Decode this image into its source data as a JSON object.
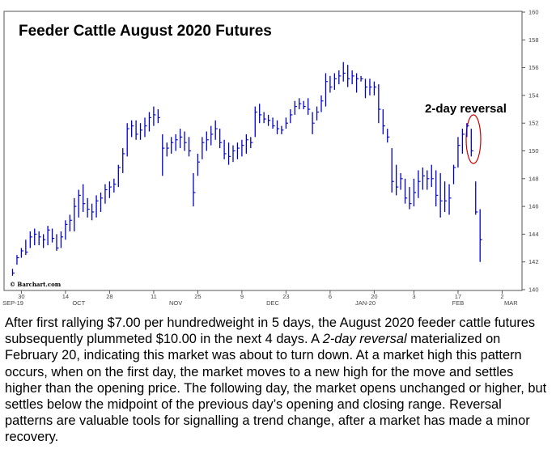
{
  "chart_data": {
    "type": "ohlc",
    "title": "Feeder Cattle August 2020 Futures",
    "annotation": "2-day reversal",
    "watermark": "© Barchart.com",
    "ylim": [
      140,
      160
    ],
    "y_ticks": [
      140,
      142,
      144,
      146,
      148,
      150,
      152,
      154,
      156,
      158,
      160
    ],
    "x_day_ticks": [
      {
        "label": "30",
        "index": 2
      },
      {
        "label": "14",
        "index": 12
      },
      {
        "label": "28",
        "index": 22
      },
      {
        "label": "11",
        "index": 32
      },
      {
        "label": "25",
        "index": 42
      },
      {
        "label": "9",
        "index": 52
      },
      {
        "label": "23",
        "index": 62
      },
      {
        "label": "6",
        "index": 72
      },
      {
        "label": "20",
        "index": 82
      },
      {
        "label": "3",
        "index": 91
      },
      {
        "label": "17",
        "index": 101
      },
      {
        "label": "2",
        "index": 111
      }
    ],
    "x_month_labels": [
      {
        "label": "SEP-19",
        "index": 0
      },
      {
        "label": "OCT",
        "index": 15
      },
      {
        "label": "NOV",
        "index": 37
      },
      {
        "label": "DEC",
        "index": 59
      },
      {
        "label": "JAN-20",
        "index": 80
      },
      {
        "label": "FEB",
        "index": 101
      },
      {
        "label": "MAR",
        "index": 113
      }
    ],
    "grid": false,
    "series_color": "#0000cc",
    "accent_color": "#cc0000",
    "bars": [
      {
        "h": 141.5,
        "l": 141.0,
        "c": 141.2
      },
      {
        "h": 142.5,
        "l": 141.8,
        "c": 142.3
      },
      {
        "h": 143.0,
        "l": 142.3,
        "c": 142.8
      },
      {
        "h": 143.6,
        "l": 142.5,
        "c": 142.7
      },
      {
        "h": 144.2,
        "l": 143.0,
        "c": 143.8
      },
      {
        "h": 144.4,
        "l": 143.2,
        "c": 144.0
      },
      {
        "h": 144.2,
        "l": 143.2,
        "c": 143.8
      },
      {
        "h": 144.0,
        "l": 143.0,
        "c": 143.6
      },
      {
        "h": 144.6,
        "l": 143.2,
        "c": 144.3
      },
      {
        "h": 144.4,
        "l": 143.4,
        "c": 143.7
      },
      {
        "h": 144.0,
        "l": 142.8,
        "c": 143.0
      },
      {
        "h": 144.2,
        "l": 143.0,
        "c": 143.8
      },
      {
        "h": 145.0,
        "l": 143.6,
        "c": 144.7
      },
      {
        "h": 145.4,
        "l": 144.2,
        "c": 145.0
      },
      {
        "h": 146.6,
        "l": 144.2,
        "c": 146.0
      },
      {
        "h": 147.2,
        "l": 145.2,
        "c": 146.8
      },
      {
        "h": 147.6,
        "l": 145.6,
        "c": 146.2
      },
      {
        "h": 146.6,
        "l": 145.2,
        "c": 145.8
      },
      {
        "h": 146.2,
        "l": 145.0,
        "c": 145.6
      },
      {
        "h": 146.8,
        "l": 145.2,
        "c": 146.4
      },
      {
        "h": 147.0,
        "l": 145.6,
        "c": 146.6
      },
      {
        "h": 147.6,
        "l": 146.2,
        "c": 147.2
      },
      {
        "h": 147.8,
        "l": 146.6,
        "c": 147.4
      },
      {
        "h": 148.0,
        "l": 147.0,
        "c": 147.6
      },
      {
        "h": 149.0,
        "l": 147.4,
        "c": 148.8
      },
      {
        "h": 150.2,
        "l": 148.4,
        "c": 149.8
      },
      {
        "h": 152.0,
        "l": 149.6,
        "c": 151.6
      },
      {
        "h": 152.2,
        "l": 151.0,
        "c": 151.8
      },
      {
        "h": 152.2,
        "l": 150.8,
        "c": 151.2
      },
      {
        "h": 152.0,
        "l": 150.8,
        "c": 151.5
      },
      {
        "h": 152.4,
        "l": 151.0,
        "c": 151.8
      },
      {
        "h": 152.8,
        "l": 151.4,
        "c": 152.4
      },
      {
        "h": 153.2,
        "l": 151.8,
        "c": 152.6
      },
      {
        "h": 153.0,
        "l": 152.0,
        "c": 152.4
      },
      {
        "h": 151.2,
        "l": 148.2,
        "c": 150.2
      },
      {
        "h": 150.6,
        "l": 149.6,
        "c": 150.2
      },
      {
        "h": 151.0,
        "l": 149.8,
        "c": 150.6
      },
      {
        "h": 151.2,
        "l": 150.0,
        "c": 150.8
      },
      {
        "h": 151.6,
        "l": 150.2,
        "c": 151.0
      },
      {
        "h": 151.4,
        "l": 150.0,
        "c": 150.6
      },
      {
        "h": 151.0,
        "l": 149.6,
        "c": 150.0
      },
      {
        "h": 148.4,
        "l": 146.0,
        "c": 147.0
      },
      {
        "h": 149.8,
        "l": 148.2,
        "c": 149.2
      },
      {
        "h": 151.0,
        "l": 149.4,
        "c": 150.6
      },
      {
        "h": 151.4,
        "l": 150.0,
        "c": 150.8
      },
      {
        "h": 151.8,
        "l": 150.4,
        "c": 151.2
      },
      {
        "h": 152.2,
        "l": 150.8,
        "c": 151.6
      },
      {
        "h": 151.6,
        "l": 150.2,
        "c": 150.6
      },
      {
        "h": 150.8,
        "l": 149.4,
        "c": 149.8
      },
      {
        "h": 150.6,
        "l": 149.0,
        "c": 149.6
      },
      {
        "h": 150.4,
        "l": 149.2,
        "c": 150.0
      },
      {
        "h": 150.6,
        "l": 149.4,
        "c": 150.2
      },
      {
        "h": 150.8,
        "l": 149.6,
        "c": 150.4
      },
      {
        "h": 151.2,
        "l": 149.8,
        "c": 150.8
      },
      {
        "h": 151.0,
        "l": 150.2,
        "c": 150.6
      },
      {
        "h": 153.2,
        "l": 151.0,
        "c": 152.8
      },
      {
        "h": 153.4,
        "l": 152.0,
        "c": 152.6
      },
      {
        "h": 152.8,
        "l": 152.0,
        "c": 152.3
      },
      {
        "h": 152.6,
        "l": 151.8,
        "c": 152.2
      },
      {
        "h": 152.4,
        "l": 151.6,
        "c": 151.8
      },
      {
        "h": 152.2,
        "l": 151.2,
        "c": 151.6
      },
      {
        "h": 151.8,
        "l": 151.2,
        "c": 151.5
      },
      {
        "h": 152.4,
        "l": 151.6,
        "c": 152.0
      },
      {
        "h": 153.0,
        "l": 152.0,
        "c": 152.6
      },
      {
        "h": 153.6,
        "l": 152.6,
        "c": 153.2
      },
      {
        "h": 153.8,
        "l": 153.0,
        "c": 153.4
      },
      {
        "h": 153.6,
        "l": 153.0,
        "c": 153.2
      },
      {
        "h": 153.8,
        "l": 152.6,
        "c": 153.0
      },
      {
        "h": 152.8,
        "l": 151.2,
        "c": 152.0
      },
      {
        "h": 153.2,
        "l": 152.2,
        "c": 152.8
      },
      {
        "h": 154.0,
        "l": 152.8,
        "c": 153.6
      },
      {
        "h": 155.6,
        "l": 153.2,
        "c": 155.0
      },
      {
        "h": 155.4,
        "l": 154.2,
        "c": 154.6
      },
      {
        "h": 155.6,
        "l": 154.4,
        "c": 155.2
      },
      {
        "h": 155.8,
        "l": 154.8,
        "c": 155.4
      },
      {
        "h": 156.4,
        "l": 155.0,
        "c": 155.6
      },
      {
        "h": 156.2,
        "l": 154.6,
        "c": 155.2
      },
      {
        "h": 155.8,
        "l": 154.8,
        "c": 155.4
      },
      {
        "h": 155.6,
        "l": 154.2,
        "c": 155.2
      },
      {
        "h": 155.4,
        "l": 155.0,
        "c": 155.2
      },
      {
        "h": 155.2,
        "l": 153.8,
        "c": 154.6
      },
      {
        "h": 155.2,
        "l": 154.0,
        "c": 154.6
      },
      {
        "h": 155.0,
        "l": 154.0,
        "c": 154.6
      },
      {
        "h": 154.8,
        "l": 152.0,
        "c": 153.0
      },
      {
        "h": 153.0,
        "l": 151.2,
        "c": 151.8
      },
      {
        "h": 151.6,
        "l": 150.6,
        "c": 151.0
      },
      {
        "h": 150.2,
        "l": 147.0,
        "c": 147.8
      },
      {
        "h": 149.0,
        "l": 146.8,
        "c": 147.4
      },
      {
        "h": 148.4,
        "l": 147.2,
        "c": 148.0
      },
      {
        "h": 148.0,
        "l": 146.2,
        "c": 146.6
      },
      {
        "h": 147.4,
        "l": 145.8,
        "c": 146.2
      },
      {
        "h": 148.0,
        "l": 146.0,
        "c": 147.0
      },
      {
        "h": 148.6,
        "l": 146.6,
        "c": 147.8
      },
      {
        "h": 148.8,
        "l": 147.2,
        "c": 148.2
      },
      {
        "h": 148.6,
        "l": 147.2,
        "c": 148.0
      },
      {
        "h": 149.0,
        "l": 147.4,
        "c": 148.0
      },
      {
        "h": 148.6,
        "l": 146.0,
        "c": 146.8
      },
      {
        "h": 148.4,
        "l": 145.2,
        "c": 146.4
      },
      {
        "h": 147.8,
        "l": 145.6,
        "c": 146.4
      },
      {
        "h": 147.6,
        "l": 145.4,
        "c": 146.6
      },
      {
        "h": 149.0,
        "l": 147.6,
        "c": 148.8
      },
      {
        "h": 151.0,
        "l": 148.8,
        "c": 150.4
      },
      {
        "h": 151.6,
        "l": 149.8,
        "c": 151.2
      },
      {
        "h": 152.0,
        "l": 151.0,
        "c": 151.8
      },
      {
        "h": 151.6,
        "l": 149.6,
        "c": 150.0
      },
      {
        "h": 147.8,
        "l": 145.4,
        "c": 145.6
      },
      {
        "h": 145.8,
        "l": 142.0,
        "c": 143.6
      }
    ]
  },
  "caption": {
    "p1": "After first rallying $7.00 per hundredweight in 5 days, the August 2020 feeder cattle futures subsequently plummeted $10.00 in the next 4 days. A ",
    "em": "2-day reversal",
    "p2": " materialized on February 20, indicating this market was about to turn down. At a market high this pattern occurs, when on the first day, the market moves to a new high for the move and settles higher than the opening price. The following day, the market opens unchanged or higher, but settles below the midpoint of the previous day’s opening and closing range. Reversal patterns are valuable tools for signalling a trend change, after a market has made a minor recovery."
  }
}
